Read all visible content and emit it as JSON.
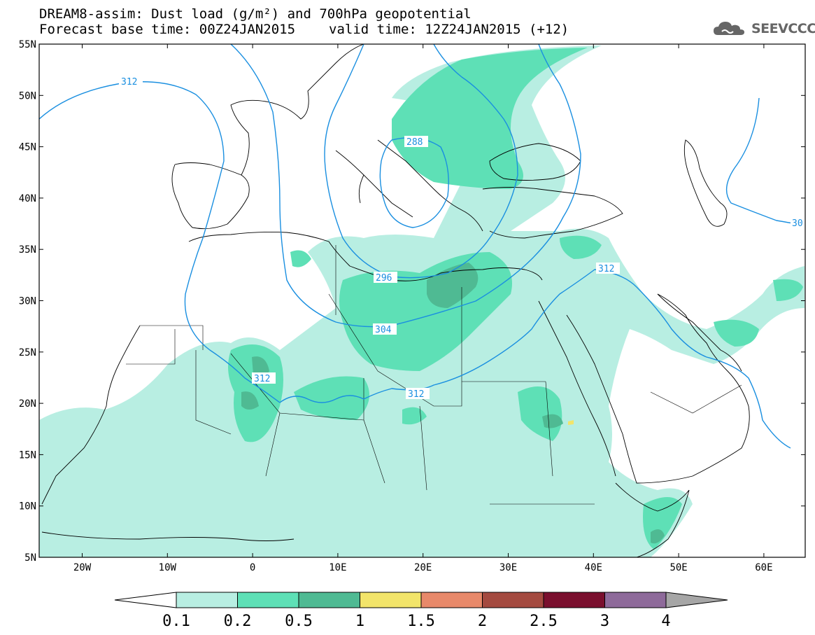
{
  "header": {
    "title_line1": "DREAM8-assim: Dust load (g/m²) and 700hPa geopotential",
    "base_time_label": "Forecast base time: 00Z24JAN2015",
    "valid_time_label": "valid time: 12Z24JAN2015 (+12)"
  },
  "logo": {
    "text": "SEEVCCC",
    "icon": "cloud-logo-icon",
    "color": "#666666"
  },
  "map": {
    "lat_labels": [
      "55N",
      "50N",
      "45N",
      "40N",
      "35N",
      "30N",
      "25N",
      "20N",
      "15N",
      "10N",
      "5N"
    ],
    "lon_labels": [
      "20W",
      "10W",
      "0",
      "10E",
      "20E",
      "30E",
      "40E",
      "50E",
      "60E"
    ],
    "contour_labels": [
      "312",
      "288",
      "296",
      "304",
      "312",
      "312",
      "312",
      "30"
    ],
    "contour_color": "#1a8fe0",
    "coast_color": "#000000"
  },
  "colorbar": {
    "labels": [
      "0.1",
      "0.2",
      "0.5",
      "1",
      "1.5",
      "2",
      "2.5",
      "3",
      "4"
    ],
    "colors": [
      "#ffffff",
      "#b8eee2",
      "#5ee0b6",
      "#4fba93",
      "#f2e46a",
      "#e8896a",
      "#a44a40",
      "#7a0f2e",
      "#8e6a9a",
      "#a6a6a6"
    ]
  }
}
